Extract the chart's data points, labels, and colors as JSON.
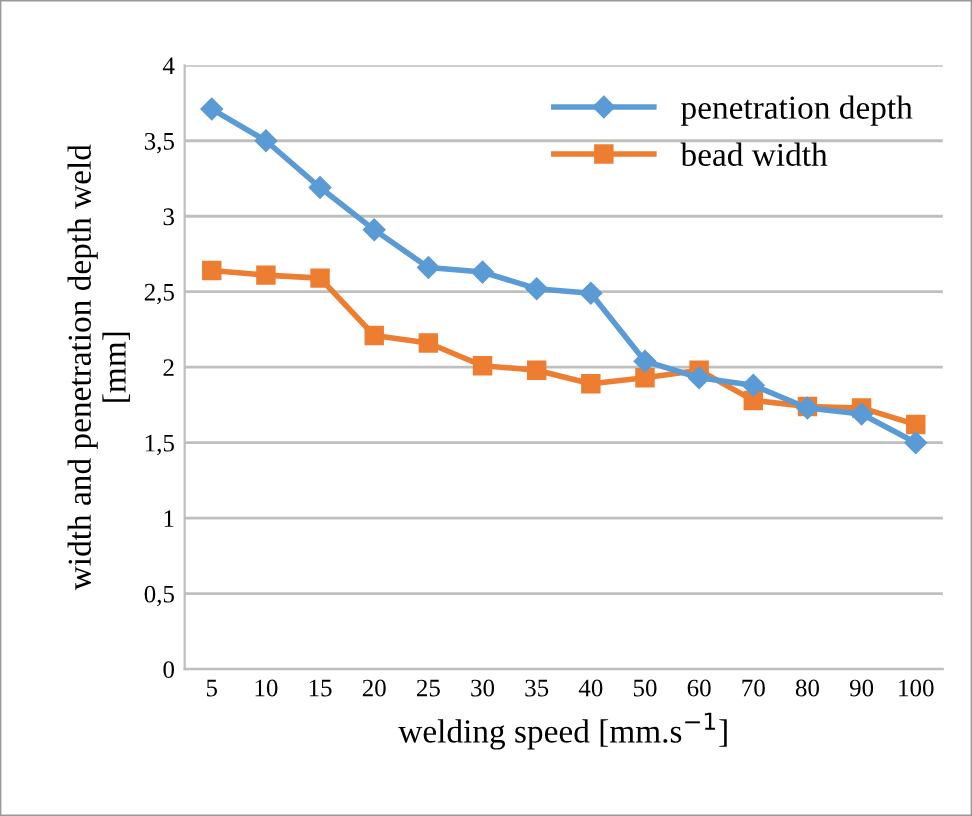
{
  "chart_data": {
    "type": "line",
    "xlabel": "welding speed [mm.s$^{−1}$]",
    "ylabel": "width and penetration depth weld\n[mm]",
    "categories": [
      "5",
      "10",
      "15",
      "20",
      "25",
      "30",
      "35",
      "40",
      "50",
      "60",
      "70",
      "80",
      "90",
      "100"
    ],
    "series": [
      {
        "name": "penetration depth",
        "color": "#5b9bd5",
        "marker": "diamond",
        "values": [
          3.71,
          3.5,
          3.19,
          2.91,
          2.66,
          2.63,
          2.52,
          2.49,
          2.04,
          1.93,
          1.88,
          1.73,
          1.69,
          1.5
        ]
      },
      {
        "name": "bead width",
        "color": "#ed7d31",
        "marker": "square",
        "values": [
          2.64,
          2.61,
          2.59,
          2.21,
          2.16,
          2.01,
          1.98,
          1.89,
          1.93,
          1.98,
          1.78,
          1.74,
          1.73,
          1.62
        ]
      }
    ],
    "ylim": [
      0,
      4
    ],
    "yticks": [
      0,
      {
        "value": 0.5,
        "label": "0,5"
      },
      1,
      {
        "value": 1.5,
        "label": "1,5"
      },
      2,
      {
        "value": 2.5,
        "label": "2,5"
      },
      3,
      {
        "value": 3.5,
        "label": "3,5"
      },
      4
    ],
    "grid": "y",
    "legend": "top right",
    "line_style": "solid"
  }
}
